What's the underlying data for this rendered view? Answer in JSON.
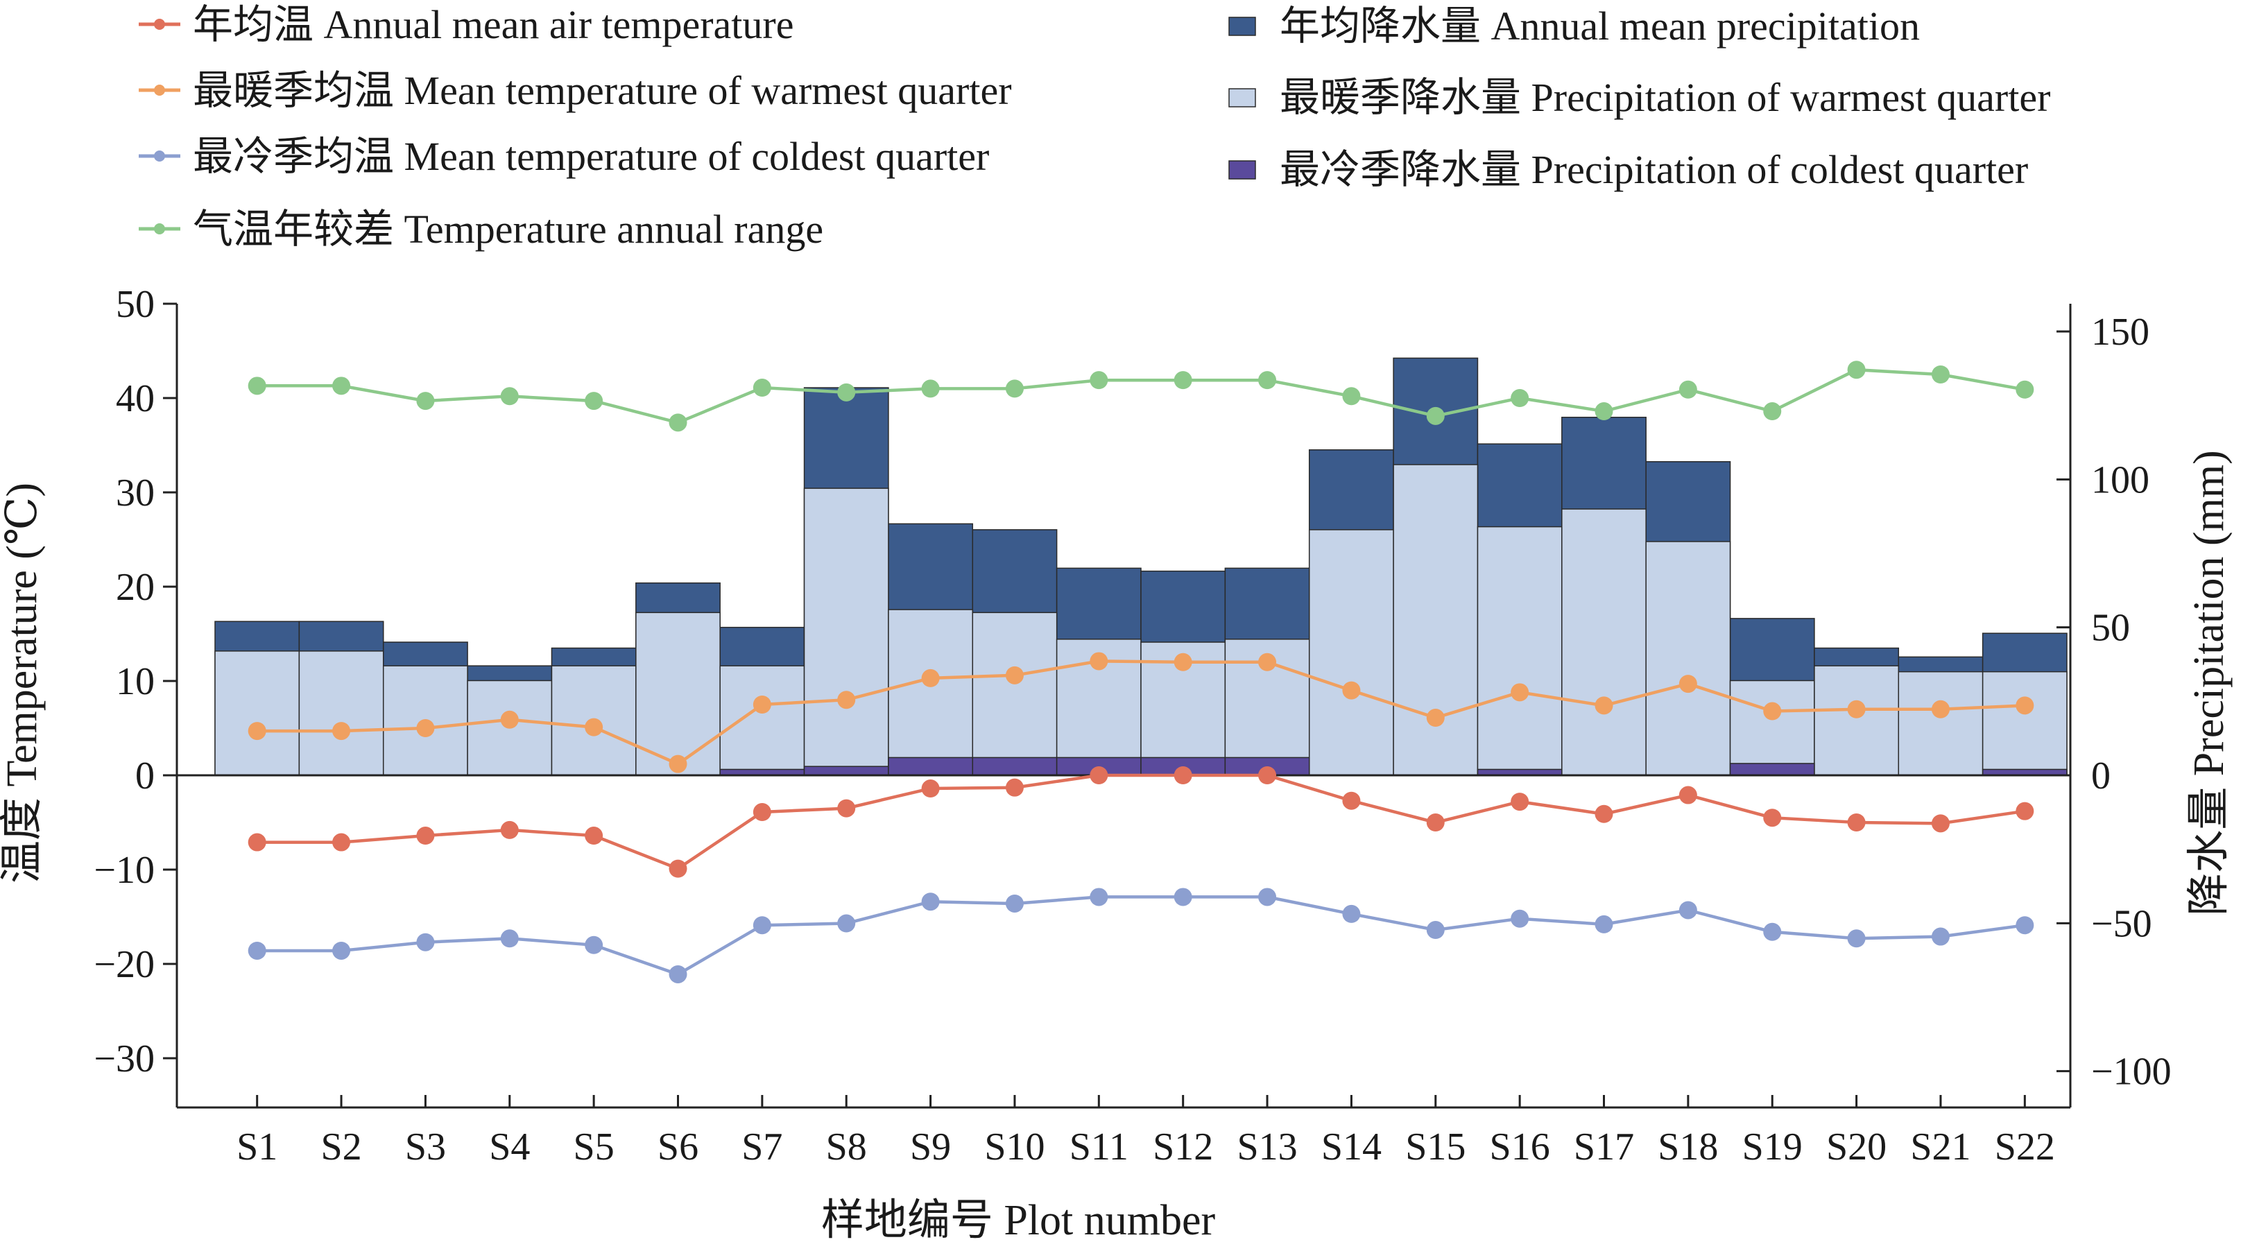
{
  "chart_data": {
    "type": "bar+line",
    "categories": [
      "S1",
      "S2",
      "S3",
      "S4",
      "S5",
      "S6",
      "S7",
      "S8",
      "S9",
      "S10",
      "S11",
      "S12",
      "S13",
      "S14",
      "S15",
      "S16",
      "S17",
      "S18",
      "S19",
      "S20",
      "S21",
      "S22"
    ],
    "xlabel": "样地编号 Plot number",
    "ylabel_left": "温度 Temperature (℃)",
    "ylabel_right": "降水量 Precipitation (mm)",
    "ylim_left": [
      -35,
      50
    ],
    "yticks_left": [
      50,
      40,
      30,
      20,
      10,
      0,
      -10,
      -20,
      -30
    ],
    "ylim_right": [
      -112,
      150
    ],
    "yticks_right": [
      150,
      100,
      50,
      0,
      -50,
      -100
    ],
    "bar_series": [
      {
        "name": "年均降水量 Annual mean precipitation",
        "color": "#3b5b8c",
        "values": [
          52,
          52,
          45,
          37,
          43,
          65,
          50,
          131,
          85,
          83,
          70,
          69,
          70,
          110,
          141,
          112,
          121,
          106,
          53,
          43,
          40,
          48
        ]
      },
      {
        "name": "最暖季降水量 Precipitation of warmest quarter",
        "color": "#c5d3e8",
        "values": [
          42,
          42,
          37,
          32,
          37,
          55,
          37,
          97,
          56,
          55,
          46,
          45,
          46,
          83,
          105,
          84,
          90,
          79,
          32,
          37,
          35,
          35
        ]
      },
      {
        "name": "最冷季降水量 Precipitation of coldest quarter",
        "color": "#5a4a9c",
        "values": [
          0,
          0,
          0,
          0,
          0,
          0,
          2,
          3,
          6,
          6,
          6,
          6,
          6,
          0,
          0,
          2,
          0,
          0,
          4,
          0,
          0,
          2
        ]
      }
    ],
    "line_series": [
      {
        "name": "年均温 Annual mean air temperature",
        "color": "#e0705a",
        "values": [
          -7.1,
          -7.1,
          -6.4,
          -5.8,
          -6.4,
          -9.9,
          -3.9,
          -3.5,
          -1.4,
          -1.3,
          0,
          0,
          0,
          -2.7,
          -5.0,
          -2.8,
          -4.1,
          -2.1,
          -4.5,
          -5.0,
          -5.1,
          -3.8
        ]
      },
      {
        "name": "最暖季均温 Mean temperature of warmest quarter",
        "color": "#f0a060",
        "values": [
          4.7,
          4.7,
          5.0,
          5.9,
          5.1,
          1.2,
          7.5,
          8.0,
          10.3,
          10.6,
          12.1,
          12.0,
          12.0,
          9.0,
          6.1,
          8.8,
          7.4,
          9.7,
          6.8,
          7.0,
          7.0,
          7.4
        ]
      },
      {
        "name": "最冷季均温 Mean temperature of coldest quarter",
        "color": "#8c9fd0",
        "values": [
          -18.6,
          -18.6,
          -17.7,
          -17.3,
          -18.0,
          -21.1,
          -15.9,
          -15.7,
          -13.4,
          -13.6,
          -12.9,
          -12.9,
          -12.9,
          -14.7,
          -16.4,
          -15.2,
          -15.8,
          -14.3,
          -16.6,
          -17.3,
          -17.1,
          -15.9
        ]
      },
      {
        "name": "气温年较差 Temperature annual range",
        "color": "#8cc98a",
        "values": [
          41.3,
          41.3,
          39.7,
          40.2,
          39.7,
          37.4,
          41.1,
          40.6,
          41.0,
          41.0,
          41.9,
          41.9,
          41.9,
          40.2,
          38.1,
          40.0,
          38.6,
          40.9,
          38.6,
          43.0,
          42.5,
          40.9
        ]
      }
    ]
  }
}
